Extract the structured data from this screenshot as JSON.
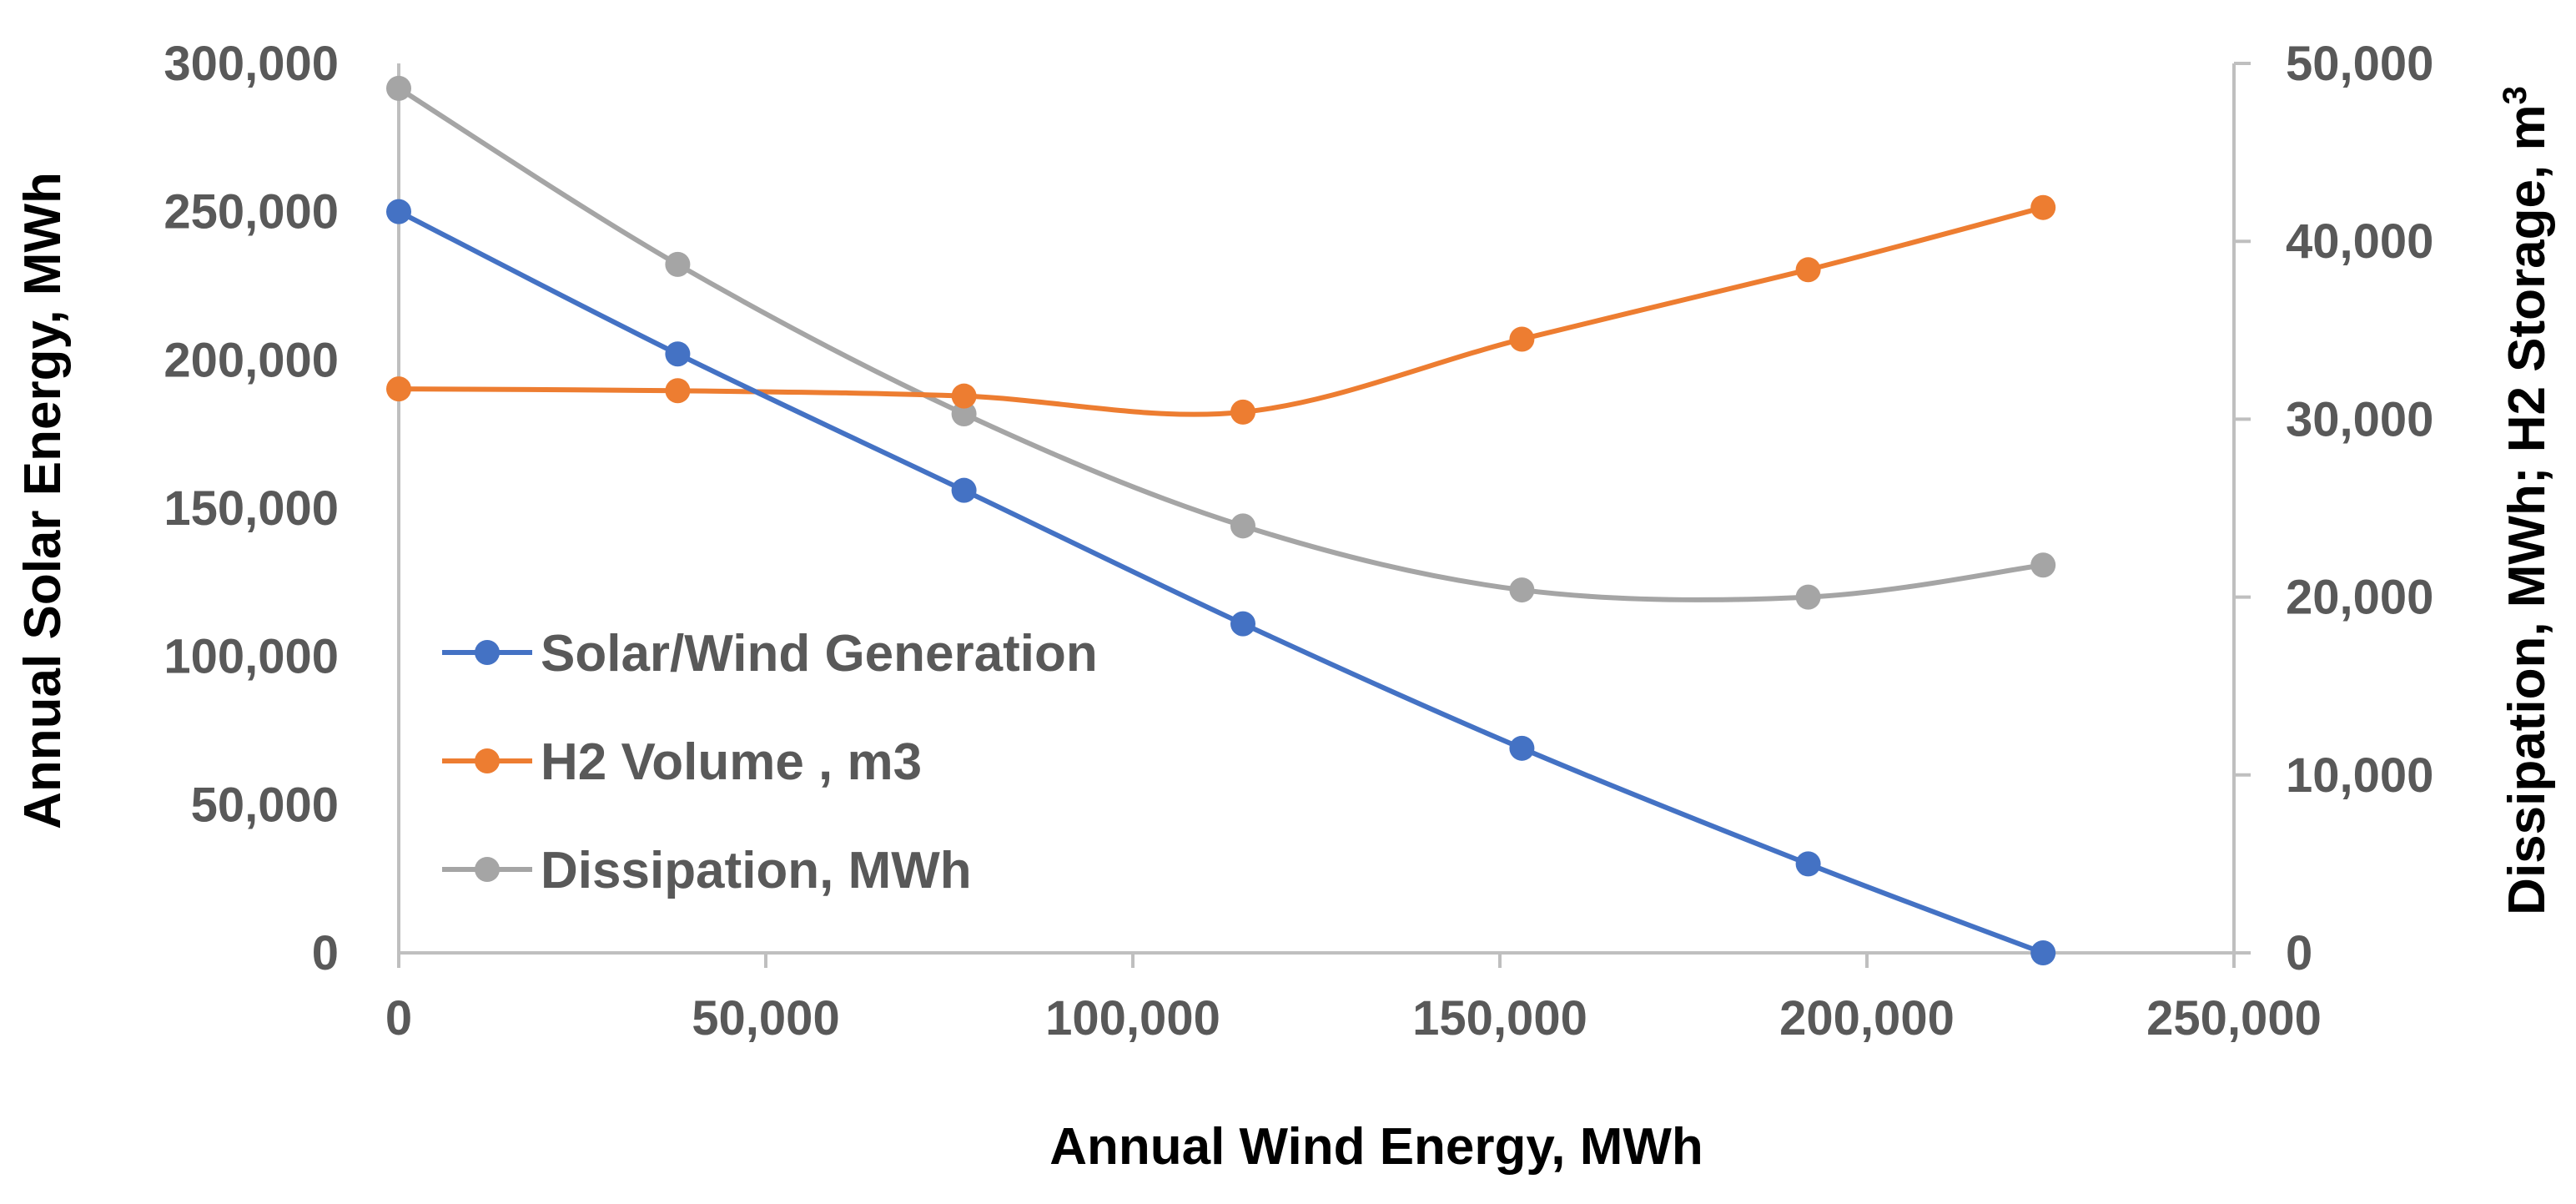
{
  "chart_data": {
    "type": "line",
    "xlabel": "Annual Wind Energy, MWh",
    "ylabel_left": "Annual Solar Energy, MWh",
    "ylabel_right": "Dissipation, MWh; H2 Storage, m",
    "ylabel_right_superscript": "3",
    "xlim": [
      0,
      250000
    ],
    "ylim_left": [
      0,
      300000
    ],
    "ylim_right": [
      0,
      50000
    ],
    "x_ticks": [
      0,
      50000,
      100000,
      150000,
      200000,
      250000
    ],
    "x_tick_labels": [
      "0",
      "50,000",
      "100,000",
      "150,000",
      "200,000",
      "250,000"
    ],
    "y_left_ticks": [
      0,
      50000,
      100000,
      150000,
      200000,
      250000,
      300000
    ],
    "y_left_tick_labels": [
      "0",
      "50,000",
      "100,000",
      "150,000",
      "200,000",
      "250,000",
      "300,000"
    ],
    "y_right_ticks": [
      0,
      10000,
      20000,
      30000,
      40000,
      50000
    ],
    "y_right_tick_labels": [
      "0",
      "10,000",
      "20,000",
      "30,000",
      "40,000",
      "50,000"
    ],
    "grid": false,
    "legend_position": "middle-left",
    "series": [
      {
        "name": "Solar/Wind Generation",
        "axis": "left",
        "color": "#4472C4",
        "x": [
          0,
          38000,
          77000,
          115000,
          153000,
          192000,
          224000
        ],
        "y": [
          250000,
          202000,
          156000,
          111000,
          69000,
          30000,
          0
        ]
      },
      {
        "name": "H2 Volume , m3",
        "axis": "right",
        "color": "#ED7D31",
        "x": [
          0,
          38000,
          77000,
          115000,
          153000,
          192000,
          224000
        ],
        "y": [
          31700,
          31600,
          31300,
          30400,
          34500,
          38400,
          41900
        ]
      },
      {
        "name": "Dissipation, MWh",
        "axis": "right",
        "color": "#A5A5A5",
        "x": [
          0,
          38000,
          77000,
          115000,
          153000,
          192000,
          224000
        ],
        "y": [
          48600,
          38700,
          30300,
          24000,
          20400,
          20000,
          21800
        ]
      }
    ]
  }
}
